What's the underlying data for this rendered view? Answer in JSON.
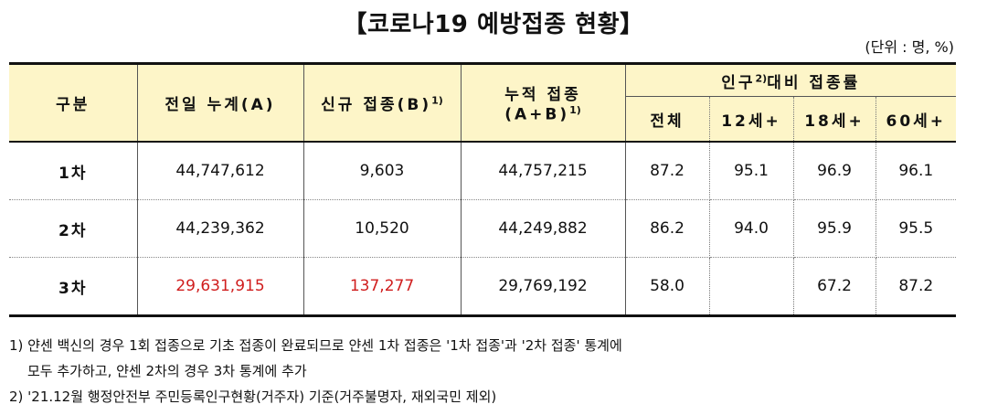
{
  "title": "【코로나19 예방접종 현황】",
  "unit": "(단위 : 명, %)",
  "headers": {
    "category": "구분",
    "prev_total": "전일 누계(A)",
    "new": "신규 접종(B)",
    "new_sup": "1)",
    "cumulative_line1": "누적 접종",
    "cumulative_line2": "(A+B)",
    "cumulative_sup": "1)",
    "rate_prefix": "인구",
    "rate_sup": "2)",
    "rate_suffix": "대비 접종률",
    "sub": [
      "전체",
      "12세+",
      "18세+",
      "60세+"
    ]
  },
  "rows": [
    {
      "label": "1차",
      "prev_total": "44,747,612",
      "new": "9,603",
      "cumulative": "44,757,215",
      "total": "87.2",
      "age12": "95.1",
      "age18": "96.9",
      "age60": "96.1"
    },
    {
      "label": "2차",
      "prev_total": "44,239,362",
      "new": "10,520",
      "cumulative": "44,249,882",
      "total": "86.2",
      "age12": "94.0",
      "age18": "95.9",
      "age60": "95.5"
    },
    {
      "label": "3차",
      "prev_total": "29,631,915",
      "new": "137,277",
      "cumulative": "29,769,192",
      "total": "58.0",
      "age12": "",
      "age18": "67.2",
      "age60": "87.2"
    }
  ],
  "highlight_color": "#d01e1e",
  "notes": [
    "1) 얀센 백신의 경우 1회 접종으로 기초 접종이 완료되므로 얀센 1차 접종은 '1차 접종'과 '2차 접종' 통계에",
    "모두 추가하고, 얀센 2차의 경우 3차 통계에 추가",
    "2) '21.12월 행정안전부 주민등록인구현황(거주자) 기준(거주불명자, 재외국민 제외)"
  ]
}
